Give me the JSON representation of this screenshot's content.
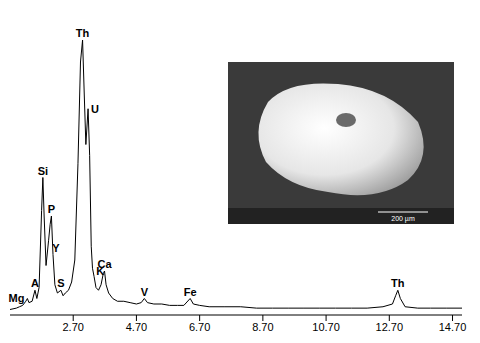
{
  "chart_data": {
    "type": "line",
    "color": "#000000",
    "tick_labels": "x",
    "grid": false,
    "x": [
      0.7,
      0.9,
      1.0,
      1.1,
      1.2,
      1.25,
      1.3,
      1.4,
      1.49,
      1.55,
      1.62,
      1.7,
      1.74,
      1.78,
      1.84,
      1.92,
      1.97,
      2.01,
      2.06,
      2.12,
      2.2,
      2.31,
      2.38,
      2.45,
      2.55,
      2.65,
      2.75,
      2.85,
      2.93,
      2.996,
      3.05,
      3.1,
      3.17,
      3.22,
      3.27,
      3.31,
      3.36,
      3.42,
      3.5,
      3.58,
      3.65,
      3.69,
      3.74,
      3.82,
      3.95,
      4.1,
      4.3,
      4.5,
      4.7,
      4.85,
      4.95,
      5.05,
      5.25,
      5.5,
      5.75,
      6.0,
      6.2,
      6.4,
      6.5,
      6.7,
      7.0,
      7.5,
      8.0,
      8.5,
      9.0,
      9.5,
      10.0,
      10.5,
      11.0,
      11.5,
      12.0,
      12.5,
      12.8,
      12.9,
      12.97,
      13.05,
      13.2,
      13.6,
      14.0,
      14.5,
      15.0
    ],
    "values": [
      2,
      2.5,
      3,
      3.5,
      5,
      6,
      4.5,
      5,
      9,
      6,
      10,
      38,
      50,
      36,
      18,
      27,
      33,
      36,
      22,
      11,
      8,
      9,
      7,
      8,
      9,
      12,
      20,
      55,
      92,
      100,
      80,
      62,
      75,
      58,
      25,
      17,
      14,
      10,
      9,
      11,
      15,
      16,
      11,
      8,
      6,
      5,
      5,
      4.5,
      4,
      4.5,
      6,
      4.5,
      4,
      4,
      3.5,
      3.5,
      3.5,
      6,
      4,
      3.5,
      3,
      3,
      3,
      2.5,
      2.5,
      2.5,
      2.5,
      2.5,
      2.5,
      2.5,
      2.5,
      3,
      4,
      7,
      9,
      6,
      3,
      2.5,
      2.5,
      2.5,
      2.5
    ],
    "xlim": [
      0.7,
      15.0
    ],
    "xticks": [
      {
        "value": 2.7,
        "label": "2.70"
      },
      {
        "value": 4.7,
        "label": "4.70"
      },
      {
        "value": 6.7,
        "label": "6.70"
      },
      {
        "value": 8.7,
        "label": "8.70"
      },
      {
        "value": 10.7,
        "label": "10.70"
      },
      {
        "value": 12.7,
        "label": "12.70"
      },
      {
        "value": 14.7,
        "label": "14.70"
      }
    ],
    "annotations": [
      {
        "text": "Th",
        "x": 2.996,
        "y": 100
      },
      {
        "text": "U",
        "x": 3.17,
        "y": 75
      },
      {
        "text": "Si",
        "x": 1.74,
        "y": 50
      },
      {
        "text": "P",
        "x": 2.01,
        "y": 36
      },
      {
        "text": "Y",
        "x": 2.15,
        "y": 22
      },
      {
        "text": "A",
        "x": 1.49,
        "y": 9
      },
      {
        "text": "Mg",
        "x": 1.25,
        "y": 6
      },
      {
        "text": "S",
        "x": 2.31,
        "y": 9
      },
      {
        "text": "K",
        "x": 3.33,
        "y": 16
      },
      {
        "text": "Ca",
        "x": 3.69,
        "y": 16
      },
      {
        "text": "V",
        "x": 4.95,
        "y": 6
      },
      {
        "text": "Fe",
        "x": 6.4,
        "y": 6
      },
      {
        "text": "Th",
        "x": 12.97,
        "y": 9
      }
    ],
    "inset": {
      "scale_bar": "200 µm"
    }
  }
}
